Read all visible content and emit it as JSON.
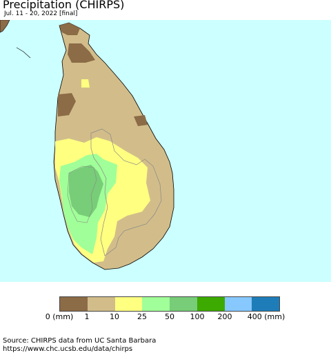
{
  "title": "Precipitation (CHIRPS)",
  "subtitle": "Jul. 11 - 20, 2022 [final]",
  "source_line1": "Source: CHIRPS data from UC Santa Barbara",
  "source_line2": "https://www.chc.ucsb.edu/data/chirps",
  "map": {
    "ocean_color": "#ccffff",
    "region": "Sri Lanka"
  },
  "legend": {
    "colors": [
      "#8c6b47",
      "#d2bd8a",
      "#ffff80",
      "#a0ff98",
      "#78cd78",
      "#3caa00",
      "#87c8ff",
      "#1e7db9"
    ],
    "labels": [
      "0 (mm)",
      "1",
      "10",
      "25",
      "50",
      "100",
      "200",
      "400 (mm)"
    ]
  }
}
